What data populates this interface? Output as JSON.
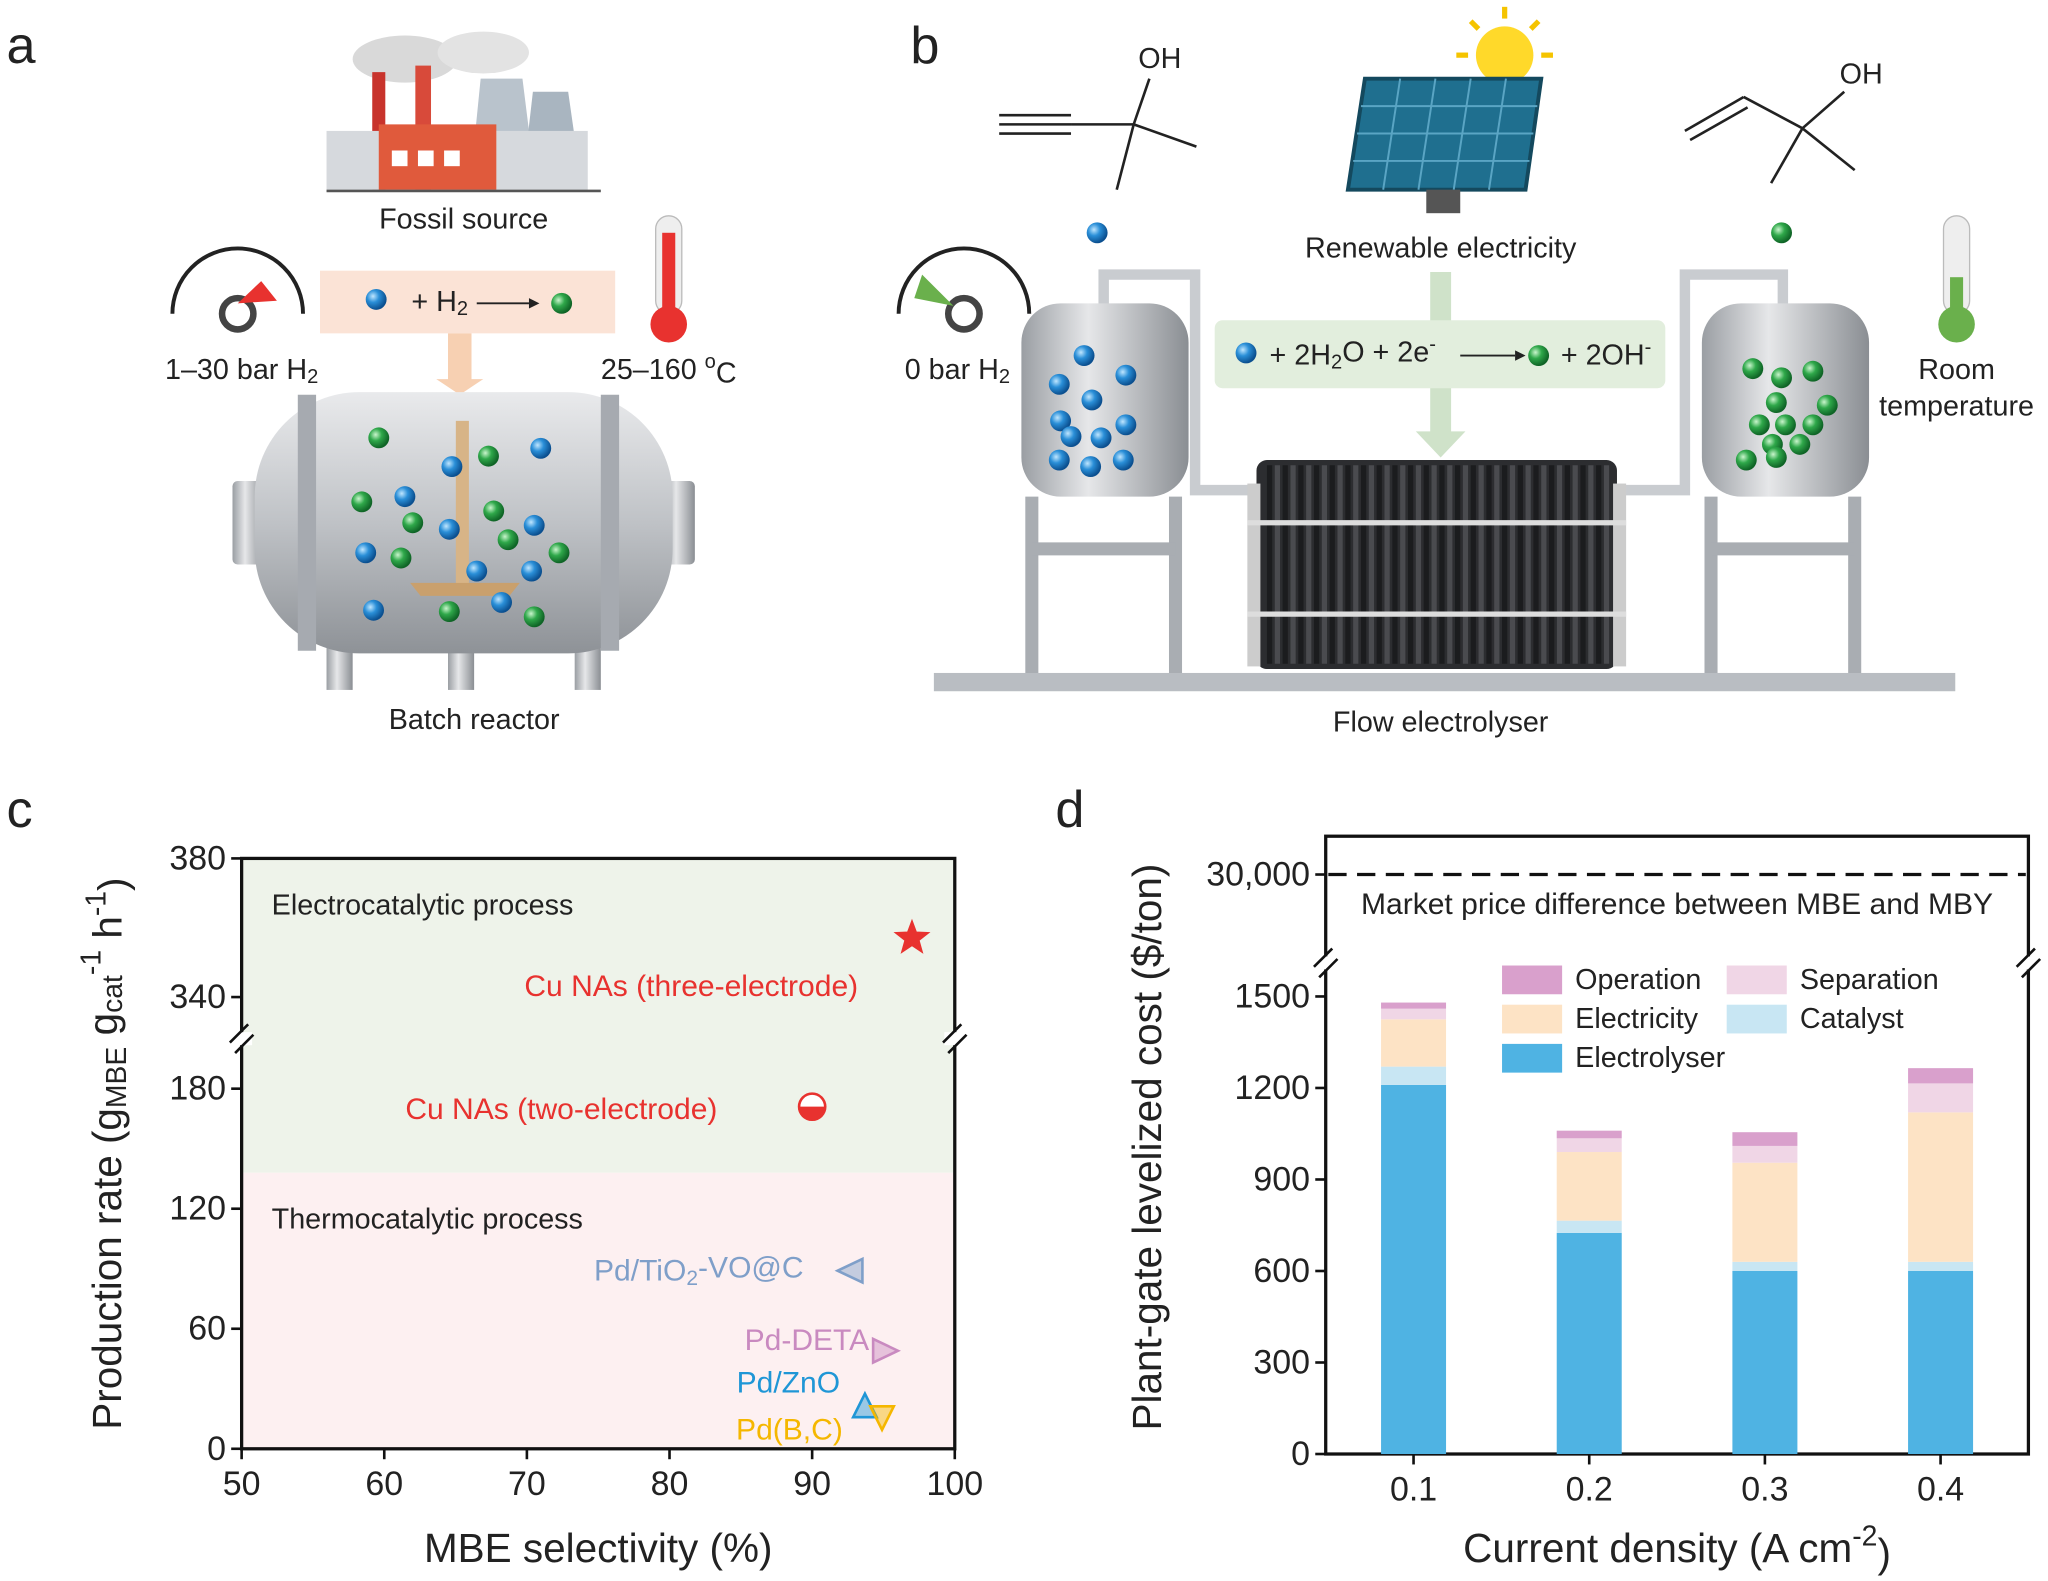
{
  "panel_labels": [
    "a",
    "b",
    "c",
    "d"
  ],
  "schematic_a": {
    "source": "Fossil source",
    "equation": [
      "+ H",
      {
        "t": "2",
        "s": "sub"
      }
    ],
    "pressure": [
      "1–30 bar H",
      {
        "t": "2",
        "s": "sub"
      }
    ],
    "temperature": [
      "25–160 ",
      {
        "t": "o",
        "s": "sup"
      },
      "C"
    ],
    "reactor": "Batch reactor"
  },
  "schematic_b": {
    "reactant_group": "OH",
    "product_group": "OH",
    "energy": "Renewable electricity",
    "pressure": [
      "0 bar H",
      {
        "t": "2",
        "s": "sub"
      }
    ],
    "equation_left": [
      "+ 2H",
      {
        "t": "2",
        "s": "sub"
      },
      "O + 2e",
      {
        "t": "-",
        "s": "sup"
      }
    ],
    "equation_right": [
      "+ 2OH",
      {
        "t": "-",
        "s": "sup"
      }
    ],
    "temperature": [
      "Room",
      "temperature"
    ],
    "device": "Flow electrolyser"
  },
  "chart_data": [
    {
      "type": "scatter",
      "xlabel": "MBE selectivity (%)",
      "ylabel": [
        "Production rate (g",
        {
          "t": "MBE",
          "s": "sub"
        },
        " g",
        {
          "t": "cat",
          "s": "sub"
        },
        {
          "t": "-1",
          "s": "sup"
        },
        " h",
        {
          "t": "-1",
          "s": "sup"
        },
        ")"
      ],
      "xlim": [
        50,
        100
      ],
      "xticks": [
        50,
        60,
        70,
        80,
        90,
        100
      ],
      "ylim": [
        0,
        380
      ],
      "y_break": [
        205,
        328
      ],
      "yticks": [
        0,
        60,
        120,
        180,
        340,
        380
      ],
      "regions": [
        {
          "label": "Electrocatalytic process",
          "from": 138,
          "to": 380,
          "color": "#eef3ea"
        },
        {
          "label": "Thermocatalytic process",
          "from": 0,
          "to": 138,
          "color": "#fdf0f1"
        }
      ],
      "series": [
        {
          "name": "Cu NAs (three-electrode)",
          "color": "#e8322f",
          "marker": "star",
          "x": [
            97
          ],
          "values": [
            357
          ]
        },
        {
          "name": "Cu NAs (two-electrode)",
          "color": "#e8322f",
          "marker": "half-circle",
          "x": [
            90
          ],
          "values": [
            171
          ]
        },
        {
          "name": [
            "Pd/TiO",
            {
              "t": "2",
              "s": "sub"
            },
            "-VO@C"
          ],
          "color": "#7f9fc9",
          "marker": "triangle-left",
          "x": [
            92.7
          ],
          "values": [
            89
          ]
        },
        {
          "name": "Pd-DETA",
          "color": "#c98ac0",
          "marker": "triangle-right",
          "x": [
            95.1
          ],
          "values": [
            49
          ]
        },
        {
          "name": "Pd/ZnO",
          "color": "#1f96d6",
          "marker": "triangle-up",
          "x": [
            93.7
          ],
          "values": [
            21
          ]
        },
        {
          "name": "Pd(B,C)",
          "color": "#f5b700",
          "marker": "triangle-down",
          "x": [
            94.9
          ],
          "values": [
            16
          ]
        }
      ]
    },
    {
      "type": "stacked_bar",
      "xlabel": [
        "Current density (A cm",
        {
          "t": "-2",
          "s": "sup"
        },
        ")"
      ],
      "ylabel": "Plant-gate levelized cost ($/ton)",
      "categories": [
        "0.1",
        "0.2",
        "0.3",
        "0.4"
      ],
      "ylim": [
        0,
        30130
      ],
      "y_break": [
        1610,
        29700
      ],
      "yticks": [
        0,
        300,
        600,
        900,
        1200,
        1500,
        {
          "value": 30000,
          "label": "30,000"
        }
      ],
      "reference_line": {
        "value": 30000,
        "label": "Market price difference between MBE and MBY",
        "style": "dashed"
      },
      "series": [
        {
          "name": "Electrolyser",
          "color": "#4fb3e3",
          "values": [
            1210,
            725,
            600,
            600
          ]
        },
        {
          "name": "Catalyst",
          "color": "#c8e6f3",
          "values": [
            60,
            40,
            30,
            30
          ]
        },
        {
          "name": "Electricity",
          "color": "#fde3c5",
          "values": [
            155,
            225,
            325,
            490
          ]
        },
        {
          "name": "Separation",
          "color": "#f0d6e6",
          "values": [
            35,
            45,
            55,
            95
          ]
        },
        {
          "name": "Operation",
          "color": "#d9a0cc",
          "values": [
            20,
            25,
            45,
            50
          ]
        }
      ]
    }
  ]
}
